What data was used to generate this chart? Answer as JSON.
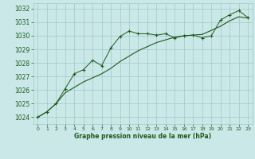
{
  "xlabel": "Graphe pression niveau de la mer (hPa)",
  "background_color": "#cbe8e8",
  "grid_color": "#a0c8c8",
  "line_color": "#1a5c1a",
  "x_ticks": [
    0,
    1,
    2,
    3,
    4,
    5,
    6,
    7,
    8,
    9,
    10,
    11,
    12,
    13,
    14,
    15,
    16,
    17,
    18,
    19,
    20,
    21,
    22,
    23
  ],
  "ylim_min": 1023.5,
  "ylim_max": 1032.4,
  "yticks": [
    1024,
    1025,
    1026,
    1027,
    1028,
    1029,
    1030,
    1031,
    1032
  ],
  "line1_x": [
    0,
    1,
    2,
    3,
    4,
    5,
    6,
    7,
    8,
    9,
    10,
    11,
    12,
    13,
    14,
    15,
    16,
    17,
    18,
    19,
    20,
    21,
    22,
    23
  ],
  "line1_y": [
    1024.0,
    1024.4,
    1025.0,
    1025.8,
    1026.2,
    1026.6,
    1026.9,
    1027.2,
    1027.6,
    1028.1,
    1028.5,
    1028.9,
    1029.2,
    1029.5,
    1029.7,
    1029.9,
    1030.0,
    1030.05,
    1030.1,
    1030.4,
    1030.7,
    1031.1,
    1031.4,
    1031.3
  ],
  "line2_x": [
    0,
    1,
    2,
    3,
    4,
    5,
    6,
    7,
    8,
    9,
    10,
    11,
    12,
    13,
    14,
    15,
    16,
    17,
    18,
    19,
    20,
    21,
    22,
    23
  ],
  "line2_y": [
    1024.0,
    1024.4,
    1025.0,
    1026.1,
    1027.2,
    1027.5,
    1028.2,
    1027.8,
    1029.1,
    1029.95,
    1030.35,
    1030.15,
    1030.15,
    1030.05,
    1030.15,
    1029.85,
    1030.0,
    1030.05,
    1029.85,
    1030.0,
    1031.15,
    1031.55,
    1031.85,
    1031.35
  ]
}
